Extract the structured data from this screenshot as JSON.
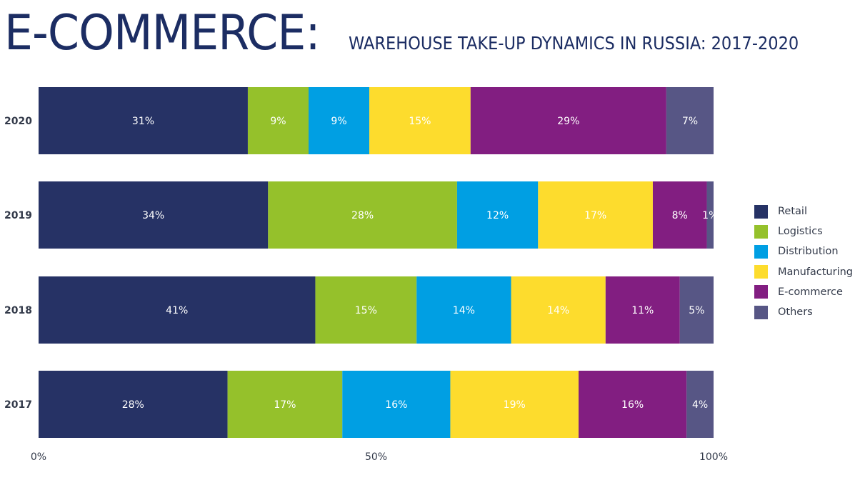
{
  "title": {
    "main": "E-COMMERCE:",
    "subtitle": "WAREHOUSE TAKE-UP DYNAMICS IN RUSSIA: 2017-2020"
  },
  "chart_data": {
    "type": "bar",
    "orientation": "horizontal",
    "stacked": true,
    "categories": [
      "2020",
      "2019",
      "2018",
      "2017"
    ],
    "series": [
      {
        "name": "Retail",
        "color": "#263265",
        "values": [
          31,
          34,
          41,
          28
        ]
      },
      {
        "name": "Logistics",
        "color": "#95c12b",
        "values": [
          9,
          28,
          15,
          17
        ]
      },
      {
        "name": "Distribution",
        "color": "#009fe3",
        "values": [
          9,
          12,
          14,
          16
        ]
      },
      {
        "name": "Manufacturing",
        "color": "#fddc2d",
        "values": [
          15,
          17,
          14,
          19
        ]
      },
      {
        "name": "E-commerce",
        "color": "#821e81",
        "values": [
          29,
          8,
          11,
          16
        ]
      },
      {
        "name": "Others",
        "color": "#575685",
        "values": [
          7,
          1,
          5,
          4
        ]
      }
    ],
    "xlim": [
      0,
      100
    ],
    "xticks": [
      "0%",
      "50%",
      "100%"
    ],
    "xtick_values": [
      0,
      50,
      100
    ],
    "value_suffix": "%",
    "legend": "right",
    "grid": false
  }
}
